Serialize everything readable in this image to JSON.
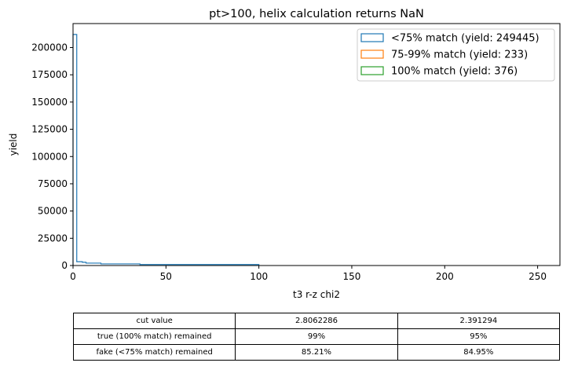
{
  "chart_data": {
    "type": "histogram",
    "title": "pt>100, helix calculation returns NaN",
    "xlabel": "t3 r-z chi2",
    "ylabel": "yield",
    "xlim": [
      0,
      262
    ],
    "ylim": [
      0,
      222000
    ],
    "xticks": [
      0,
      50,
      100,
      150,
      200,
      250
    ],
    "yticks": [
      0,
      25000,
      50000,
      75000,
      100000,
      125000,
      150000,
      175000,
      200000
    ],
    "legend_position": "top-right",
    "series": [
      {
        "name": "<75% match (yield: 249445)",
        "color": "#1f77b4",
        "steps": [
          {
            "x0": 0,
            "x1": 2,
            "y": 212000
          },
          {
            "x0": 2,
            "x1": 5,
            "y": 3500
          },
          {
            "x0": 5,
            "x1": 7,
            "y": 3000
          },
          {
            "x0": 7,
            "x1": 15,
            "y": 2200
          },
          {
            "x0": 15,
            "x1": 36,
            "y": 1500
          },
          {
            "x0": 36,
            "x1": 100,
            "y": 900
          }
        ]
      },
      {
        "name": "75-99% match (yield: 233)",
        "color": "#ff7f0e",
        "steps": []
      },
      {
        "name": "100% match (yield: 376)",
        "color": "#2ca02c",
        "steps": []
      }
    ]
  },
  "table": {
    "rows": [
      [
        "cut value",
        "2.8062286",
        "2.391294"
      ],
      [
        "true (100% match) remained",
        "99%",
        "95%"
      ],
      [
        "fake (<75% match) remained",
        "85.21%",
        "84.95%"
      ]
    ]
  }
}
